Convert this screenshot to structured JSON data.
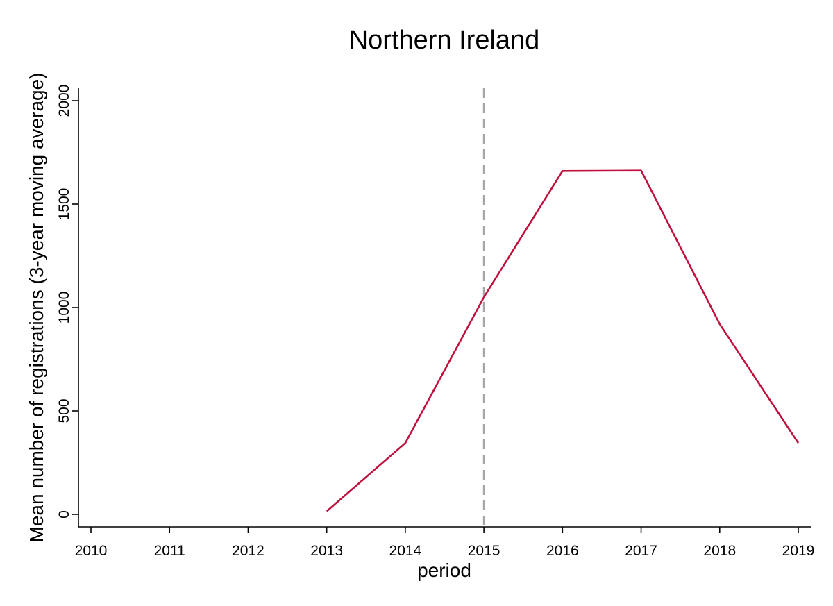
{
  "chart_data": {
    "type": "line",
    "title": "Northern Ireland",
    "xlabel": "period",
    "ylabel": "Mean number of registrations (3-year moving average)",
    "x_ticks": [
      2010,
      2011,
      2012,
      2013,
      2014,
      2015,
      2016,
      2017,
      2018,
      2019
    ],
    "y_ticks": [
      0,
      500,
      1000,
      1500,
      2000
    ],
    "xlim": [
      2010,
      2019
    ],
    "ylim": [
      0,
      2000
    ],
    "grid": false,
    "reference_line": {
      "x": 2015,
      "style": "dashed",
      "color": "#a6a6a6"
    },
    "series": [
      {
        "color": "#c0103e",
        "points": [
          {
            "x": 2013,
            "y": 15
          },
          {
            "x": 2014,
            "y": 345
          },
          {
            "x": 2015,
            "y": 1050
          },
          {
            "x": 2016,
            "y": 1660
          },
          {
            "x": 2017,
            "y": 1662
          },
          {
            "x": 2018,
            "y": 920
          },
          {
            "x": 2019,
            "y": 345
          }
        ]
      }
    ]
  }
}
